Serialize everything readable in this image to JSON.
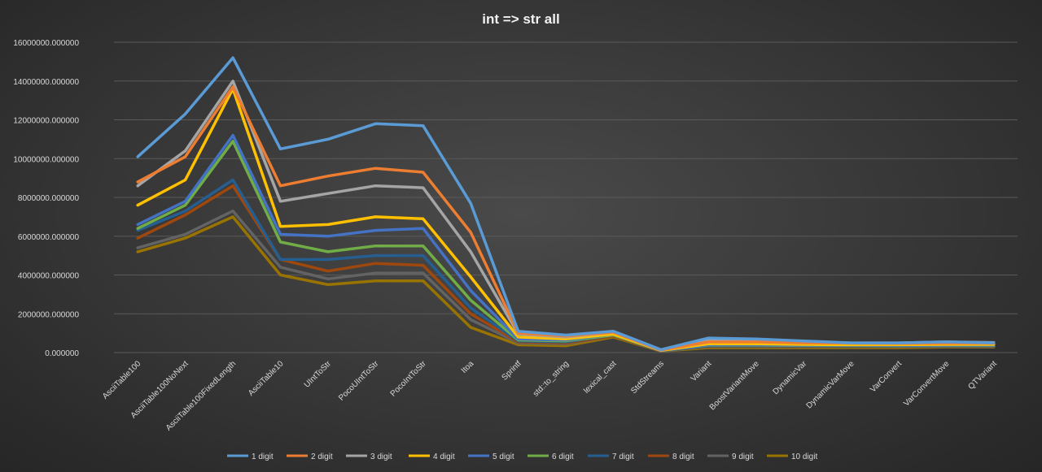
{
  "chart_data": {
    "type": "line",
    "title": "int => str  all",
    "xlabel": "",
    "ylabel": "",
    "ylim": [
      0,
      16000000
    ],
    "yticks": [
      "0.000000",
      "2000000.000000",
      "4000000.000000",
      "6000000.000000",
      "8000000.000000",
      "10000000.000000",
      "12000000.000000",
      "14000000.000000",
      "16000000.000000"
    ],
    "grid": true,
    "legend": "bottom",
    "categories": [
      "AsciiTable100",
      "AsciiTable100NoNext",
      "AsciiTable100FixedLength",
      "AsciiTable10",
      "UIntToStr",
      "PocoUIntToStr",
      "PocoIntToStr",
      "Itoa",
      "Sprintf",
      "std::to_string",
      "lexical_cast",
      "StdStreams",
      "Variant",
      "BoostVariantMove",
      "DynamicVar",
      "DynamicVarMove",
      "VarConvert",
      "VarConvertMove",
      "QTVariant"
    ],
    "series": [
      {
        "name": "1 digit",
        "color": "#5b9bd5",
        "values": [
          10100000,
          12300000,
          15200000,
          10500000,
          11000000,
          11800000,
          11700000,
          7700000,
          1100000,
          900000,
          1100000,
          150000,
          750000,
          700000,
          600000,
          500000,
          500000,
          550000,
          500000
        ]
      },
      {
        "name": "2 digit",
        "color": "#ed7d31",
        "values": [
          8800000,
          10100000,
          13700000,
          8600000,
          9100000,
          9500000,
          9300000,
          6200000,
          1000000,
          850000,
          1050000,
          130000,
          550000,
          550000,
          500000,
          480000,
          470000,
          480000,
          480000
        ]
      },
      {
        "name": "3 digit",
        "color": "#a5a5a5",
        "values": [
          8600000,
          10400000,
          14000000,
          7800000,
          8200000,
          8600000,
          8500000,
          5200000,
          950000,
          800000,
          1050000,
          120000,
          650000,
          650000,
          550000,
          500000,
          500000,
          550000,
          520000
        ]
      },
      {
        "name": "4 digit",
        "color": "#ffc000",
        "values": [
          7600000,
          8900000,
          13600000,
          6500000,
          6600000,
          7000000,
          6900000,
          3900000,
          800000,
          700000,
          950000,
          110000,
          450000,
          450000,
          420000,
          400000,
          400000,
          420000,
          420000
        ]
      },
      {
        "name": "5 digit",
        "color": "#4472c4",
        "values": [
          6600000,
          7800000,
          11200000,
          6100000,
          6000000,
          6300000,
          6400000,
          3200000,
          700000,
          650000,
          950000,
          100000,
          400000,
          400000,
          380000,
          380000,
          370000,
          380000,
          380000
        ]
      },
      {
        "name": "6 digit",
        "color": "#70ad47",
        "values": [
          6400000,
          7600000,
          10900000,
          5700000,
          5200000,
          5500000,
          5500000,
          2700000,
          650000,
          600000,
          900000,
          100000,
          380000,
          380000,
          360000,
          360000,
          350000,
          360000,
          360000
        ]
      },
      {
        "name": "7 digit",
        "color": "#255e91",
        "values": [
          6300000,
          7300000,
          8900000,
          4800000,
          4800000,
          5000000,
          5000000,
          2300000,
          600000,
          550000,
          900000,
          90000,
          350000,
          350000,
          340000,
          340000,
          330000,
          340000,
          340000
        ]
      },
      {
        "name": "8 digit",
        "color": "#9e480e",
        "values": [
          5900000,
          7100000,
          8600000,
          4800000,
          4200000,
          4600000,
          4500000,
          2000000,
          550000,
          500000,
          850000,
          90000,
          330000,
          330000,
          320000,
          320000,
          310000,
          320000,
          320000
        ]
      },
      {
        "name": "9 digit",
        "color": "#636363",
        "values": [
          5400000,
          6100000,
          7300000,
          4400000,
          3800000,
          4100000,
          4100000,
          1700000,
          500000,
          450000,
          850000,
          80000,
          310000,
          310000,
          300000,
          300000,
          300000,
          300000,
          300000
        ]
      },
      {
        "name": "10 digit",
        "color": "#997300",
        "values": [
          5200000,
          5900000,
          7000000,
          4000000,
          3500000,
          3700000,
          3700000,
          1300000,
          400000,
          350000,
          800000,
          70000,
          250000,
          250000,
          250000,
          250000,
          250000,
          280000,
          280000
        ]
      }
    ]
  }
}
